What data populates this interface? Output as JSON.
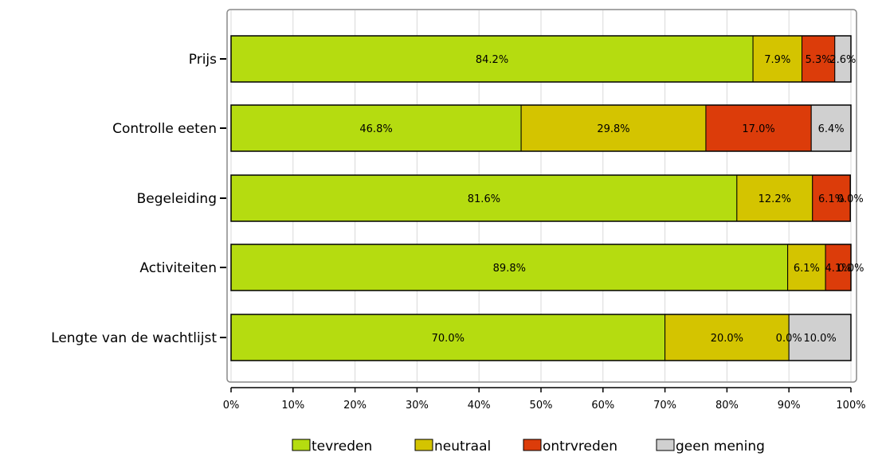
{
  "chart_data": {
    "type": "bar",
    "orientation": "horizontal",
    "stacked": true,
    "categories": [
      "Prijs",
      "Controlle eeten",
      "Begeleiding",
      "Activiteiten",
      "Lengte van de wachtlijst"
    ],
    "series": [
      {
        "name": "tevreden",
        "color": "#b5dc10",
        "values": [
          84.2,
          46.8,
          81.6,
          89.8,
          70.0
        ],
        "labels": [
          "84.2%",
          "46.8%",
          "81.6%",
          "89.8%",
          "70.0%"
        ]
      },
      {
        "name": "neutraal",
        "color": "#d4c400",
        "values": [
          7.9,
          29.8,
          12.2,
          6.1,
          20.0
        ],
        "labels": [
          "7.9%",
          "29.8%",
          "12.2%",
          "6.1%",
          "20.0%"
        ]
      },
      {
        "name": "ontrvreden",
        "color": "#dc3c0a",
        "values": [
          5.3,
          17.0,
          6.1,
          4.1,
          0.0
        ],
        "labels": [
          "5.3%",
          "17.0%",
          "6.1%",
          "4.1%",
          "0.0%"
        ]
      },
      {
        "name": "geen mening",
        "color": "#d0d0d0",
        "values": [
          2.6,
          6.4,
          0.0,
          0.0,
          10.0
        ],
        "labels": [
          "2.6%",
          "6.4%",
          "0.0%",
          "0.0%",
          "10.0%"
        ]
      }
    ],
    "xlim": [
      0,
      100
    ],
    "xticks": [
      "0%",
      "10%",
      "20%",
      "30%",
      "40%",
      "50%",
      "60%",
      "70%",
      "80%",
      "90%",
      "100%"
    ],
    "grid": true,
    "legend": "bottom"
  }
}
